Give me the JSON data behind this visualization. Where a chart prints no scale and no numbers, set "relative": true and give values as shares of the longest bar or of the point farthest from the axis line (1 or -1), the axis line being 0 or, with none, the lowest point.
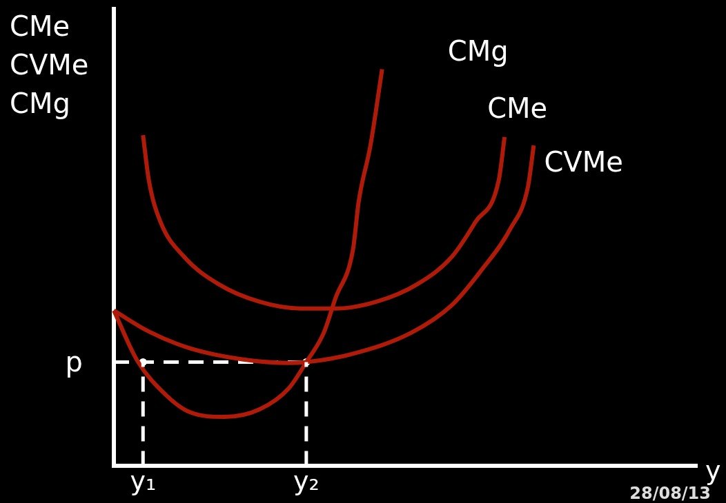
{
  "chart_data": {
    "type": "line",
    "relative": true,
    "ylabel": "CMe\nCVMe\nCMg",
    "xlabel": "y",
    "categories": [
      null,
      null,
      null,
      null,
      null,
      "y₁",
      null,
      null,
      null,
      null,
      null,
      null,
      null,
      null,
      null,
      null,
      null,
      null,
      null,
      null,
      null,
      null,
      null,
      null,
      null,
      null,
      null,
      null,
      null,
      null,
      null,
      null,
      null,
      "y₂",
      null,
      null,
      null,
      null,
      null,
      null,
      null,
      null,
      null,
      null,
      null,
      null,
      null,
      null,
      null,
      null,
      null,
      null,
      null,
      null,
      null,
      null,
      null,
      null,
      null,
      null,
      null,
      null,
      null,
      null,
      null,
      null,
      null,
      null,
      null,
      null,
      null,
      null,
      null,
      null,
      null,
      null,
      null,
      null,
      null,
      null,
      null,
      null,
      null,
      null,
      null,
      null,
      null,
      null,
      null,
      null,
      null,
      null,
      null,
      null,
      null,
      null,
      null,
      null,
      null,
      null,
      null
    ],
    "legend": false,
    "marker": "none",
    "line_style": "solid",
    "annotations": [
      "p",
      "28/08/13"
    ],
    "series": [
      {
        "name": "CMg",
        "color": "#b01a08",
        "values": [
          0.392,
          null,
          null,
          null,
          0.266,
          null,
          null,
          null,
          null,
          0.178,
          null,
          null,
          null,
          0.136,
          null,
          null,
          null,
          null,
          null,
          0.124,
          null,
          null,
          null,
          null,
          null,
          0.143,
          null,
          null,
          null,
          null,
          0.196,
          null,
          null,
          0.262,
          null,
          null,
          0.336,
          null,
          0.423,
          null,
          null,
          0.545,
          0.668,
          null,
          0.808,
          null,
          1.0,
          null,
          null,
          null,
          null,
          null,
          null,
          null,
          null,
          null,
          null,
          null,
          null,
          null,
          null,
          null,
          null,
          null,
          null,
          null,
          null,
          null,
          null,
          null,
          null,
          null,
          null,
          null,
          null,
          null,
          null,
          null,
          null,
          null,
          null,
          null,
          null,
          null,
          null,
          null,
          null,
          null,
          null,
          null,
          null,
          null,
          null,
          null,
          null,
          null,
          null,
          null,
          null,
          null,
          null
        ]
      },
      {
        "name": "CMe",
        "color": "#b01a08",
        "values": [
          null,
          null,
          null,
          null,
          null,
          0.834,
          0.72,
          null,
          0.615,
          null,
          null,
          null,
          0.528,
          null,
          null,
          null,
          null,
          null,
          0.458,
          null,
          null,
          null,
          null,
          null,
          null,
          0.414,
          null,
          null,
          null,
          null,
          null,
          null,
          0.397,
          null,
          null,
          null,
          null,
          null,
          0.397,
          null,
          null,
          null,
          null,
          null,
          null,
          0.414,
          null,
          null,
          null,
          null,
          null,
          null,
          0.458,
          null,
          null,
          null,
          null,
          null,
          0.528,
          null,
          null,
          null,
          0.615,
          null,
          null,
          null,
          0.72,
          0.829,
          null,
          null,
          null,
          null,
          null,
          null,
          null,
          null,
          null,
          null,
          null,
          null,
          null,
          null,
          null,
          null,
          null,
          null,
          null,
          null,
          null,
          null,
          null,
          null,
          null,
          null,
          null,
          null,
          null,
          null,
          null,
          null,
          null
        ]
      },
      {
        "name": "CVMe",
        "color": "#b01a08",
        "values": [
          0.392,
          null,
          null,
          null,
          null,
          null,
          0.339,
          null,
          null,
          null,
          null,
          null,
          null,
          0.297,
          null,
          null,
          null,
          null,
          null,
          null,
          null,
          null,
          0.269,
          null,
          null,
          null,
          null,
          null,
          null,
          null,
          0.26,
          null,
          null,
          0.262,
          null,
          null,
          null,
          null,
          null,
          null,
          null,
          0.283,
          null,
          null,
          null,
          null,
          null,
          null,
          null,
          null,
          null,
          0.336,
          null,
          null,
          null,
          null,
          null,
          null,
          0.406,
          null,
          null,
          null,
          null,
          0.493,
          null,
          null,
          null,
          null,
          0.598,
          null,
          null,
          0.703,
          0.808,
          null,
          null,
          null,
          null,
          null,
          null,
          null,
          null,
          null,
          null,
          null,
          null,
          null,
          null,
          null,
          null,
          null,
          null,
          null,
          null,
          null,
          null,
          null,
          null,
          null,
          null,
          null,
          null
        ]
      },
      {
        "color": "#ffffff",
        "line_style": "dashed",
        "values": [
          0.262,
          null,
          null,
          null,
          null,
          null,
          null,
          null,
          null,
          null,
          null,
          null,
          null,
          null,
          null,
          null,
          null,
          null,
          null,
          null,
          null,
          null,
          null,
          null,
          null,
          null,
          null,
          null,
          null,
          null,
          null,
          null,
          null,
          0.262,
          null,
          null,
          null,
          null,
          null,
          null,
          null,
          null,
          null,
          null,
          null,
          null,
          null,
          null,
          null,
          null,
          null,
          null,
          null,
          null,
          null,
          null,
          null,
          null,
          null,
          null,
          null,
          null,
          null,
          null,
          null,
          null,
          null,
          null,
          null,
          null,
          null,
          null,
          null,
          null,
          null,
          null,
          null,
          null,
          null,
          null,
          null,
          null,
          null,
          null,
          null,
          null,
          null,
          null,
          null,
          null,
          null,
          null,
          null,
          null,
          null,
          null,
          null,
          null,
          null,
          null,
          null
        ]
      },
      {
        "type": "lollipop",
        "color": "#ffffff",
        "line_style": "dashed",
        "marker": "circle",
        "values": [
          null,
          null,
          null,
          null,
          null,
          0.262,
          null,
          null,
          null,
          null,
          null,
          null,
          null,
          null,
          null,
          null,
          null,
          null,
          null,
          null,
          null,
          null,
          null,
          null,
          null,
          null,
          null,
          null,
          null,
          null,
          null,
          null,
          null,
          0.262,
          null,
          null,
          null,
          null,
          null,
          null,
          null,
          null,
          null,
          null,
          null,
          null,
          null,
          null,
          null,
          null,
          null,
          null,
          null,
          null,
          null,
          null,
          null,
          null,
          null,
          null,
          null,
          null,
          null,
          null,
          null,
          null,
          null,
          null,
          null,
          null,
          null,
          null,
          null,
          null,
          null,
          null,
          null,
          null,
          null,
          null,
          null,
          null,
          null,
          null,
          null,
          null,
          null,
          null,
          null,
          null,
          null,
          null,
          null,
          null,
          null,
          null,
          null,
          null,
          null,
          null,
          null
        ]
      }
    ]
  }
}
